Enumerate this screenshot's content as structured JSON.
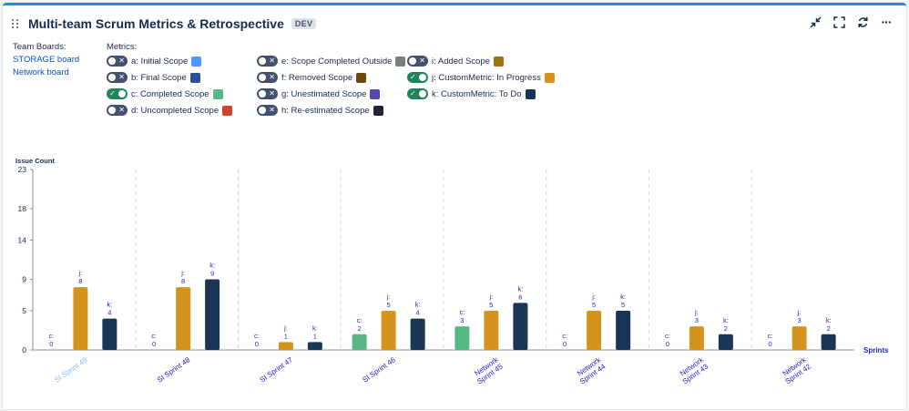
{
  "header": {
    "title": "Multi-team Scrum Metrics & Retrospective",
    "badge": "DEV",
    "tools": [
      "collapse-icon",
      "fullscreen-icon",
      "refresh-icon",
      "more-icon"
    ],
    "more_label": "···"
  },
  "boards": {
    "label": "Team Boards:",
    "items": [
      "STORAGE board",
      "Network board"
    ]
  },
  "metrics": {
    "label": "Metrics:",
    "items": [
      {
        "label": "a: Initial Scope",
        "on": false,
        "color": "#4c9aff"
      },
      {
        "label": "b: Final Scope",
        "on": false,
        "color": "#2a4f96"
      },
      {
        "label": "c: Completed Scope",
        "on": true,
        "color": "#57b884"
      },
      {
        "label": "d: Uncompleted Scope",
        "on": false,
        "color": "#c9462c"
      },
      {
        "label": "e: Scope Completed Outside",
        "on": false,
        "color": "#7a7e85"
      },
      {
        "label": "f: Removed Scope",
        "on": false,
        "color": "#6b4a0e"
      },
      {
        "label": "g: Unestimated Scope",
        "on": false,
        "color": "#5a45a8"
      },
      {
        "label": "h: Re-estimated Scope",
        "on": false,
        "color": "#1f2436"
      },
      {
        "label": "i: Added Scope",
        "on": false,
        "color": "#9c7512"
      },
      {
        "label": "j: CustomMetric: In Progress",
        "on": true,
        "color": "#d4931d"
      },
      {
        "label": "k: CustomMetric: To Do",
        "on": true,
        "color": "#1b3557"
      }
    ]
  },
  "chart_data": {
    "type": "bar",
    "ylabel": "Issue Count",
    "xlabel": "Sprints",
    "ylim": [
      0,
      23
    ],
    "yticks": [
      0,
      5,
      9,
      14,
      18,
      23
    ],
    "grid": "vertical dashed separators between categories",
    "categories": [
      [
        "SI Sprint 49"
      ],
      [
        "SI Sprint 48"
      ],
      [
        "SI Sprint 47"
      ],
      [
        "SI Sprint 46"
      ],
      [
        "Network",
        "Sprint 45"
      ],
      [
        "Network",
        "Sprint 44"
      ],
      [
        "Network",
        "Sprint 43"
      ],
      [
        "Network",
        "Sprint 42"
      ]
    ],
    "category_label_colors": [
      "#8fb8ec",
      "#2323c4",
      "#2323c4",
      "#2323c4",
      "#2323c4",
      "#2323c4",
      "#2323c4",
      "#2323c4"
    ],
    "series": [
      {
        "name": "c:",
        "color": "#57b884",
        "values": [
          0,
          0,
          0,
          2,
          3,
          0,
          0,
          0
        ]
      },
      {
        "name": "j:",
        "color": "#d4931d",
        "values": [
          8,
          8,
          1,
          5,
          5,
          5,
          3,
          3
        ]
      },
      {
        "name": "k:",
        "color": "#1b3557",
        "values": [
          4,
          9,
          1,
          4,
          6,
          5,
          2,
          2
        ]
      }
    ]
  }
}
